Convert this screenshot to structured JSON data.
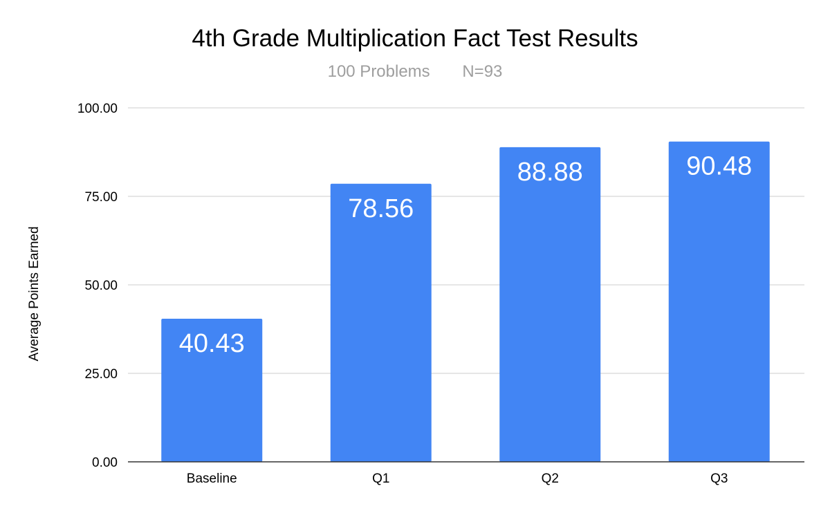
{
  "chart_data": {
    "type": "bar",
    "title": "4th Grade Multiplication Fact Test Results",
    "subtitle": "100 Problems       N=93",
    "xlabel": "",
    "ylabel": "Average Points Earned",
    "categories": [
      "Baseline",
      "Q1",
      "Q2",
      "Q3"
    ],
    "values": [
      40.43,
      78.56,
      88.88,
      90.48
    ],
    "data_labels": [
      "40.43",
      "78.56",
      "88.88",
      "90.48"
    ],
    "ylim": [
      0,
      100
    ],
    "yticks": [
      0,
      25,
      50,
      75,
      100
    ],
    "ytick_labels": [
      "0.00",
      "25.00",
      "50.00",
      "75.00",
      "100.00"
    ],
    "grid": true,
    "legend": "none",
    "bar_color": "#4285F4"
  }
}
